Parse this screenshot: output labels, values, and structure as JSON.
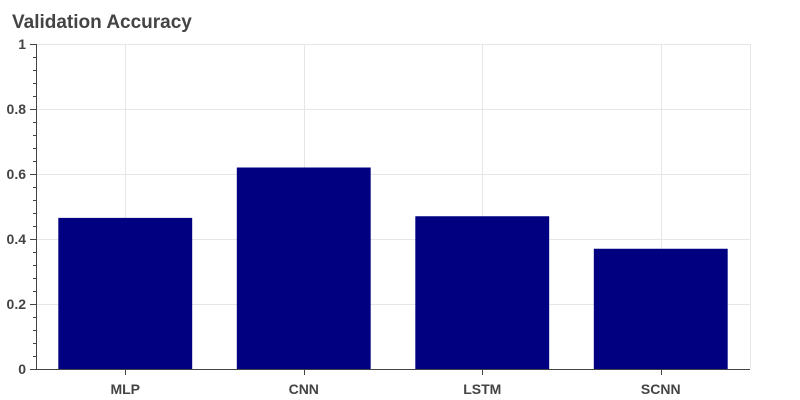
{
  "chart_data": {
    "type": "bar",
    "title": "Validation Accuracy",
    "xlabel": "",
    "ylabel": "",
    "categories": [
      "MLP",
      "CNN",
      "LSTM",
      "SCNN"
    ],
    "values": [
      0.465,
      0.62,
      0.47,
      0.37
    ],
    "ylim": [
      0,
      1
    ],
    "yticks": [
      0,
      0.2,
      0.4,
      0.6,
      0.8,
      1
    ],
    "ytick_labels": [
      "0",
      "0.2",
      "0.4",
      "0.6",
      "0.8",
      "1"
    ],
    "grid": true,
    "bar_color": "#000080",
    "grid_color": "#e6e6e6",
    "axis_color": "#444444"
  }
}
